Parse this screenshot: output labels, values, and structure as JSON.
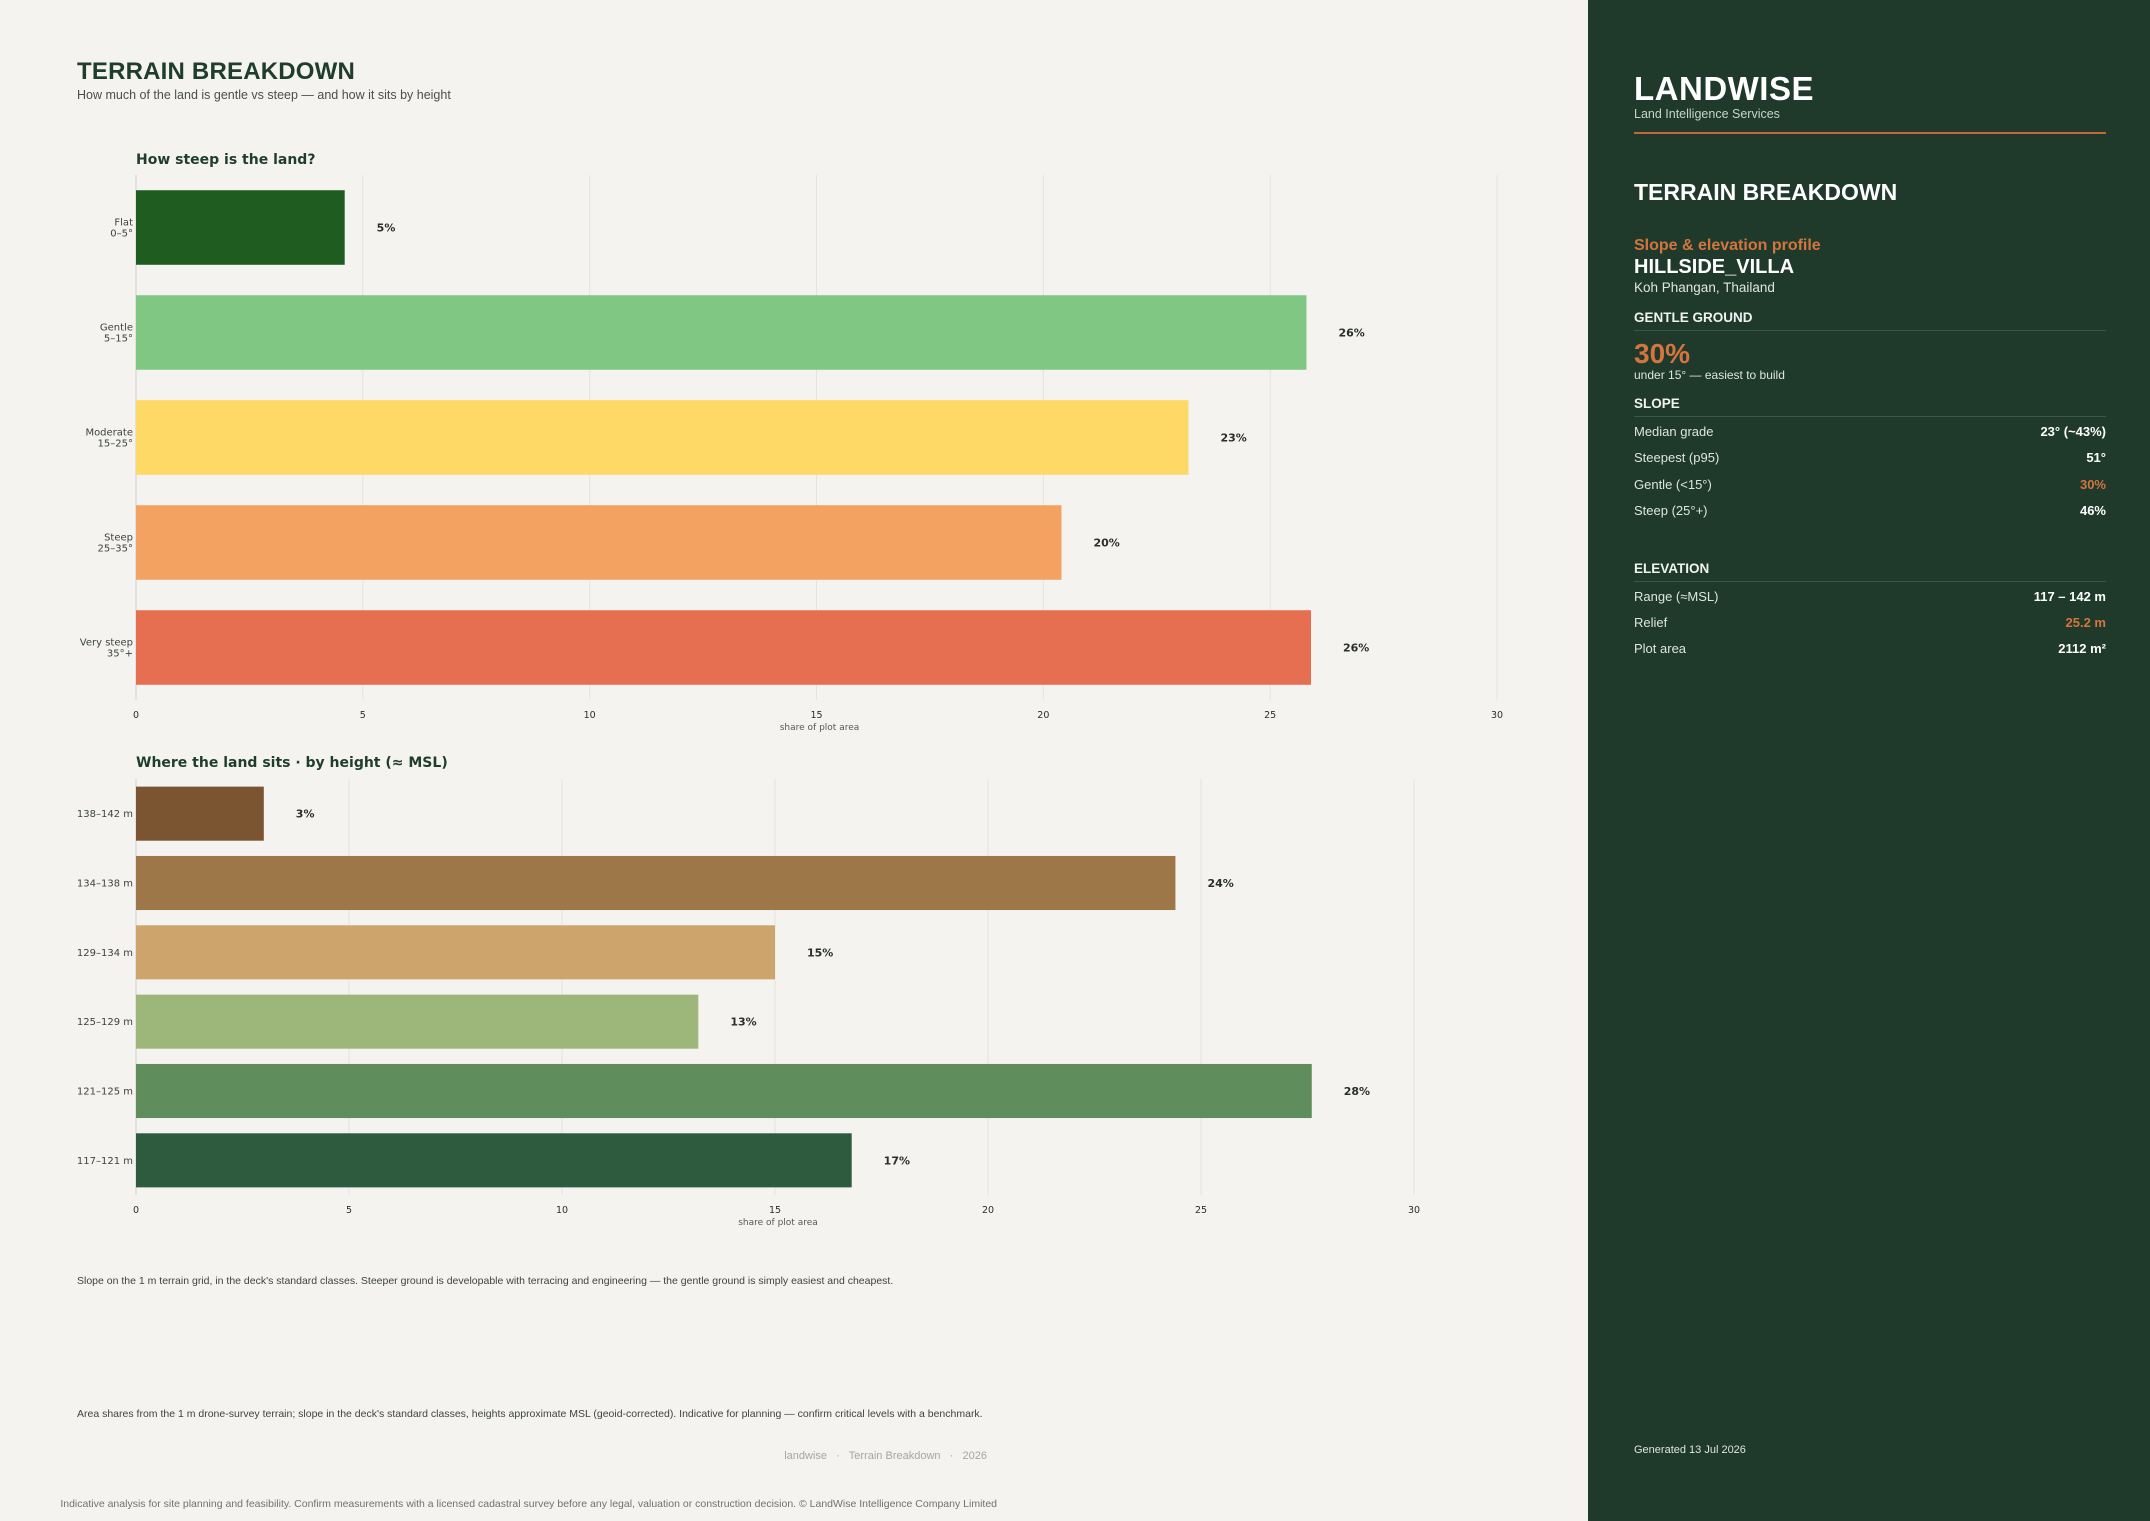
{
  "header": {
    "title": "TERRAIN BREAKDOWN",
    "subtitle": "How much of the land is gentle vs steep — and how it sits by height"
  },
  "chart_data": [
    {
      "type": "bar",
      "orientation": "horizontal",
      "title": "How steep is the land?",
      "xlabel": "share of plot area",
      "ylabel": "",
      "xlim": [
        0,
        30
      ],
      "xticks": [
        0,
        5,
        10,
        15,
        20,
        25,
        30
      ],
      "grid": true,
      "categories": [
        [
          "Flat",
          "0–5°"
        ],
        [
          "Gentle",
          "5–15°"
        ],
        [
          "Moderate",
          "15–25°"
        ],
        [
          "Steep",
          "25–35°"
        ],
        [
          "Very steep",
          "35°+"
        ]
      ],
      "values": [
        4.6,
        25.8,
        23.2,
        20.4,
        25.9
      ],
      "value_labels": [
        "5%",
        "26%",
        "23%",
        "20%",
        "26%"
      ],
      "colors": [
        "#1e5c20",
        "#81c784",
        "#ffd966",
        "#f4a261",
        "#e76f51"
      ]
    },
    {
      "type": "bar",
      "orientation": "horizontal",
      "title": "Where the land sits  ·  by height (≈ MSL)",
      "xlabel": "share of plot area",
      "ylabel": "",
      "xlim": [
        0,
        30
      ],
      "xticks": [
        0,
        5,
        10,
        15,
        20,
        25,
        30
      ],
      "grid": true,
      "categories": [
        [
          "138–142 m"
        ],
        [
          "134–138 m"
        ],
        [
          "129–134 m"
        ],
        [
          "125–129 m"
        ],
        [
          "121–125 m"
        ],
        [
          "117–121 m"
        ]
      ],
      "values": [
        3.0,
        24.4,
        15.0,
        13.2,
        27.6,
        16.8
      ],
      "value_labels": [
        "3%",
        "24%",
        "15%",
        "13%",
        "28%",
        "17%"
      ],
      "colors": [
        "#7b5532",
        "#9e7749",
        "#cda46b",
        "#9db77a",
        "#5f8d5b",
        "#2e5a3e"
      ]
    }
  ],
  "notes": {
    "slope_note": "Slope on the 1 m terrain grid, in the deck's standard classes. Steeper ground is developable with terracing and engineering — the gentle ground is simply easiest and cheapest.",
    "source_note": "Area shares from the 1 m drone-survey terrain; slope in the deck's standard classes, heights approximate MSL (geoid-corrected). Indicative for planning — confirm critical levels with a benchmark."
  },
  "footer": {
    "trail": "landwise   ·   Terrain Breakdown   ·   2026",
    "disclaimer": "Indicative analysis for site planning and feasibility. Confirm measurements with a licensed cadastral survey before any legal, valuation or construction decision. © LandWise Intelligence Company Limited"
  },
  "sidebar": {
    "brand": "LANDWISE",
    "brand_sub": "Land Intelligence Services",
    "title": "TERRAIN BREAKDOWN",
    "kicker": "Slope & elevation profile",
    "site": "HILLSIDE_VILLA",
    "location": "Koh Phangan, Thailand",
    "gentle": {
      "heading": "GENTLE GROUND",
      "value": "30%",
      "note": "under 15° — easiest to build"
    },
    "slope": {
      "heading": "SLOPE",
      "rows": [
        {
          "label": "Median grade",
          "value": "23° (~43%)"
        },
        {
          "label": "Steepest (p95)",
          "value": "51°"
        },
        {
          "label": "Gentle (<15°)",
          "value": "30%"
        },
        {
          "label": "Steep (25°+)",
          "value": "46%"
        }
      ]
    },
    "elevation": {
      "heading": "ELEVATION",
      "rows": [
        {
          "label": "Range (≈MSL)",
          "value": "117 – 142 m"
        },
        {
          "label": "Relief",
          "value": "25.2 m"
        },
        {
          "label": "Plot area",
          "value": "2112 m²"
        }
      ]
    },
    "generated": "Generated 13 Jul 2026",
    "accent": "#d4743f",
    "background": "#1f3a2b"
  }
}
